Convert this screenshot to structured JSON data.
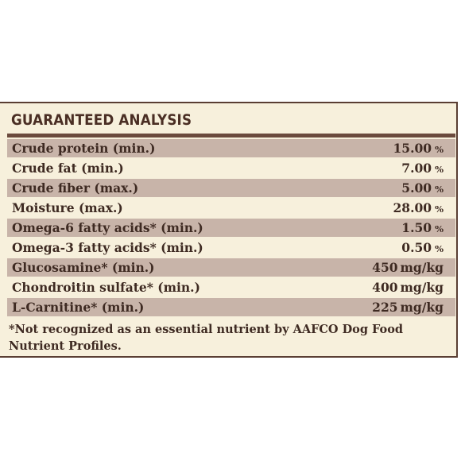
{
  "panel": {
    "title": "GUARANTEED ANALYSIS"
  },
  "analysis": [
    {
      "name": "Crude protein (min.)",
      "value": "15.00",
      "unit": "%"
    },
    {
      "name": "Crude fat (min.)",
      "value": "7.00",
      "unit": "%"
    },
    {
      "name": "Crude fiber (max.)",
      "value": "5.00",
      "unit": "%"
    },
    {
      "name": "Moisture (max.)",
      "value": "28.00",
      "unit": "%"
    },
    {
      "name": "Omega-6 fatty acids* (min.)",
      "value": "1.50",
      "unit": "%"
    },
    {
      "name": "Omega-3 fatty acids* (min.)",
      "value": "0.50",
      "unit": "%"
    },
    {
      "name": "Glucosamine* (min.)",
      "value": "450",
      "unit": "mg/kg"
    },
    {
      "name": "Chondroitin sulfate* (min.)",
      "value": "400",
      "unit": "mg/kg"
    },
    {
      "name": "L-Carnitine* (min.)",
      "value": "225",
      "unit": "mg/kg"
    }
  ],
  "footnote": "*Not recognized as an essential nutrient by AAFCO Dog Food Nutrient Profiles.",
  "colors": {
    "panel_background": "#f7f0dc",
    "shaded_row": "#c8b4a9",
    "border": "#5a3e33",
    "text": "#3e2a22"
  }
}
